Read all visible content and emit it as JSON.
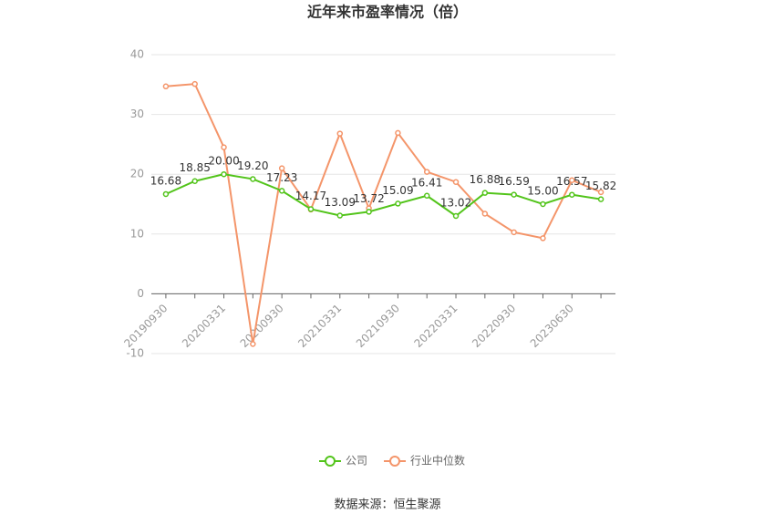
{
  "chart_data": {
    "type": "line",
    "title": "近年来市盈率情况（倍）",
    "categories": [
      "20190930",
      null,
      "20200331",
      null,
      "20200930",
      null,
      "20210331",
      null,
      "20210930",
      null,
      "20220331",
      null,
      "20220930",
      null,
      "20230630",
      null
    ],
    "series": [
      {
        "name": "公司",
        "color": "#52c41a",
        "values": [
          16.68,
          18.85,
          20.0,
          19.2,
          17.23,
          14.17,
          13.09,
          13.72,
          15.09,
          16.41,
          13.02,
          16.88,
          16.59,
          15.0,
          16.57,
          15.82
        ],
        "value_labels": [
          "16.68",
          "18.85",
          "20.00",
          "19.20",
          "17.23",
          "14.17",
          "13.09",
          "13.72",
          "15.09",
          "16.41",
          "13.02",
          "16.88",
          "16.59",
          "15.00",
          "16.57",
          "15.82"
        ]
      },
      {
        "name": "行业中位数",
        "color": "#f4956a",
        "values": [
          34.7,
          35.1,
          24.5,
          -8.4,
          21.0,
          14.1,
          26.8,
          14.3,
          26.9,
          20.4,
          18.7,
          13.4,
          10.3,
          9.3,
          19.0,
          17.0
        ]
      }
    ],
    "ylim": [
      -10,
      40
    ],
    "yticks": [
      -10,
      0,
      10,
      20,
      30,
      40
    ],
    "grid": true,
    "source": "数据来源：恒生聚源"
  }
}
